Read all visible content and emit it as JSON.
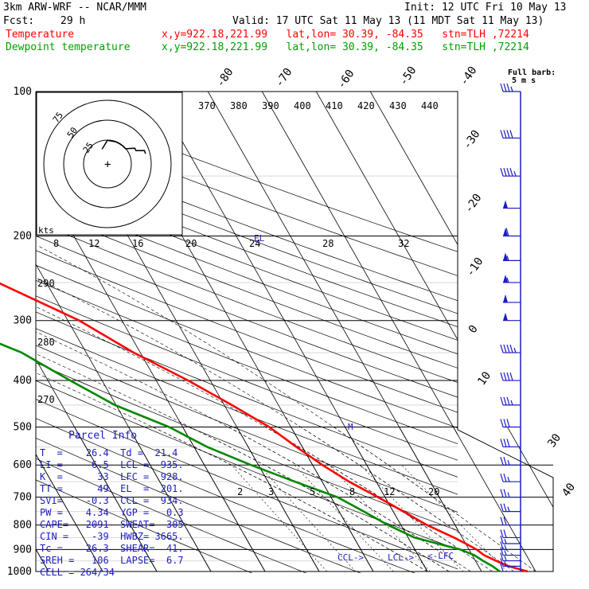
{
  "header": {
    "model": "3km ARW-WRF -- NCAR/MMM",
    "init": "Init: 12 UTC Fri 10 May 13",
    "fcst_label": "Fcst:",
    "fcst_value": "29 h",
    "valid": "Valid: 17 UTC Sat 11 May 13 (11 MDT Sat 11 May 13)",
    "temp_label": "Temperature",
    "dew_label": "Dewpoint temperature",
    "temp_loc": "x,y=922.18,221.99   lat,lon= 30.39, -84.35   stn=TLH ,72214",
    "dew_loc": "x,y=922.18,221.99   lat,lon= 30.39, -84.35   stn=TLH ,72214"
  },
  "barb_legend": {
    "line1": "Full barb:",
    "line2": "5 m s"
  },
  "parcel_info": {
    "title": "Parcel Info",
    "rows": [
      "T  =    26.4  Td =  21.4",
      "LI =    -6.5  LCL =  935.",
      "K  =      33  LFC =  928.",
      "TT =      49  EL  =  201.",
      "SVI=    -0.3  CCL =  934.",
      "PW =    4.34  YGP =   0.3",
      "CAPE=   2091  SWEAT=  305",
      "CIN =    -39  HWBZ= 3665.",
      "Tc =    26.3  SHEAR=  41.",
      "SREH =   106  LAPSE=  6.7",
      "CELL = 264/34"
    ]
  },
  "level_labels": {
    "lcl": "LCL->",
    "ccl": "CCL->",
    "lfc": "<-LFC",
    "el": "EL",
    "mark": "M"
  },
  "hodograph": {
    "unit": "kts",
    "rings": [
      "25",
      "50",
      "75"
    ]
  },
  "colors": {
    "temperature": "#ff0000",
    "dewpoint": "#008800",
    "barbs": "#1c1cc0",
    "grid": "#000000"
  },
  "chart_data": {
    "type": "skew-t",
    "y_axis": {
      "label": "pressure (hPa)",
      "scale": "log",
      "range": [
        1000,
        100
      ],
      "ticks": [
        100,
        200,
        300,
        400,
        500,
        600,
        700,
        800,
        900,
        1000
      ]
    },
    "isotherm_labels": [
      "-80",
      "-70",
      "-60",
      "-50",
      "-40",
      "-30",
      "-20",
      "-10",
      "0",
      "10",
      "20",
      "30",
      "40"
    ],
    "theta_labels": [
      "370",
      "380",
      "390",
      "400",
      "410",
      "420",
      "430",
      "440",
      "290",
      "280",
      "270"
    ],
    "mixing_ratio_labels_low": [
      "2",
      "3",
      "5",
      "8",
      "12",
      "20"
    ],
    "mixing_ratio_labels_mid": [
      "8",
      "12",
      "16",
      "20",
      "24",
      "28",
      "32"
    ],
    "series": [
      {
        "name": "Temperature",
        "points": [
          [
            1000,
            28.5
          ],
          [
            975,
            25.6
          ],
          [
            950,
            23.8
          ],
          [
            925,
            22.2
          ],
          [
            900,
            21.4
          ],
          [
            875,
            20.0
          ],
          [
            850,
            18.5
          ],
          [
            800,
            14.8
          ],
          [
            750,
            11.9
          ],
          [
            700,
            8.7
          ],
          [
            650,
            5.0
          ],
          [
            600,
            1.8
          ],
          [
            550,
            -1.1
          ],
          [
            500,
            -4.0
          ],
          [
            450,
            -8.6
          ],
          [
            400,
            -14.1
          ],
          [
            350,
            -21.2
          ],
          [
            300,
            -27.9
          ],
          [
            250,
            -38.9
          ],
          [
            200,
            -50.9
          ],
          [
            175,
            -56.5
          ],
          [
            150,
            -62.5
          ],
          [
            125,
            -68.0
          ],
          [
            100,
            -75.5
          ]
        ]
      },
      {
        "name": "Dewpoint temperature",
        "points": [
          [
            1000,
            23.4
          ],
          [
            975,
            22.6
          ],
          [
            950,
            21.4
          ],
          [
            925,
            20.4
          ],
          [
            900,
            18.4
          ],
          [
            875,
            14.8
          ],
          [
            850,
            11.2
          ],
          [
            800,
            7.6
          ],
          [
            750,
            4.6
          ],
          [
            700,
            1.2
          ],
          [
            650,
            -5.0
          ],
          [
            600,
            -11.4
          ],
          [
            550,
            -17.6
          ],
          [
            500,
            -22.5
          ],
          [
            450,
            -30.2
          ],
          [
            400,
            -35.9
          ],
          [
            350,
            -41.9
          ],
          [
            300,
            -53.1
          ],
          [
            250,
            -60.4
          ],
          [
            200,
            -71.7
          ],
          [
            175,
            -78.1
          ],
          [
            150,
            -81.8
          ],
          [
            125,
            -86.6
          ],
          [
            100,
            -91.4
          ]
        ]
      }
    ],
    "wind_barbs": [
      {
        "p": 1000,
        "dir": 160,
        "kt": 10
      },
      {
        "p": 975,
        "dir": 180,
        "kt": 15
      },
      {
        "p": 950,
        "dir": 200,
        "kt": 15
      },
      {
        "p": 925,
        "dir": 210,
        "kt": 15
      },
      {
        "p": 900,
        "dir": 220,
        "kt": 15
      },
      {
        "p": 875,
        "dir": 230,
        "kt": 15
      },
      {
        "p": 850,
        "dir": 240,
        "kt": 20
      },
      {
        "p": 800,
        "dir": 245,
        "kt": 20
      },
      {
        "p": 750,
        "dir": 250,
        "kt": 25
      },
      {
        "p": 700,
        "dir": 255,
        "kt": 25
      },
      {
        "p": 650,
        "dir": 260,
        "kt": 25
      },
      {
        "p": 600,
        "dir": 260,
        "kt": 25
      },
      {
        "p": 550,
        "dir": 265,
        "kt": 30
      },
      {
        "p": 500,
        "dir": 265,
        "kt": 30
      },
      {
        "p": 450,
        "dir": 270,
        "kt": 35
      },
      {
        "p": 400,
        "dir": 270,
        "kt": 40
      },
      {
        "p": 350,
        "dir": 275,
        "kt": 45
      },
      {
        "p": 300,
        "dir": 275,
        "kt": 50
      },
      {
        "p": 275,
        "dir": 275,
        "kt": 50
      },
      {
        "p": 250,
        "dir": 280,
        "kt": 55
      },
      {
        "p": 225,
        "dir": 280,
        "kt": 55
      },
      {
        "p": 200,
        "dir": 280,
        "kt": 60
      },
      {
        "p": 175,
        "dir": 280,
        "kt": 50
      },
      {
        "p": 150,
        "dir": 275,
        "kt": 45
      },
      {
        "p": 125,
        "dir": 270,
        "kt": 40
      },
      {
        "p": 100,
        "dir": 265,
        "kt": 35
      }
    ]
  }
}
